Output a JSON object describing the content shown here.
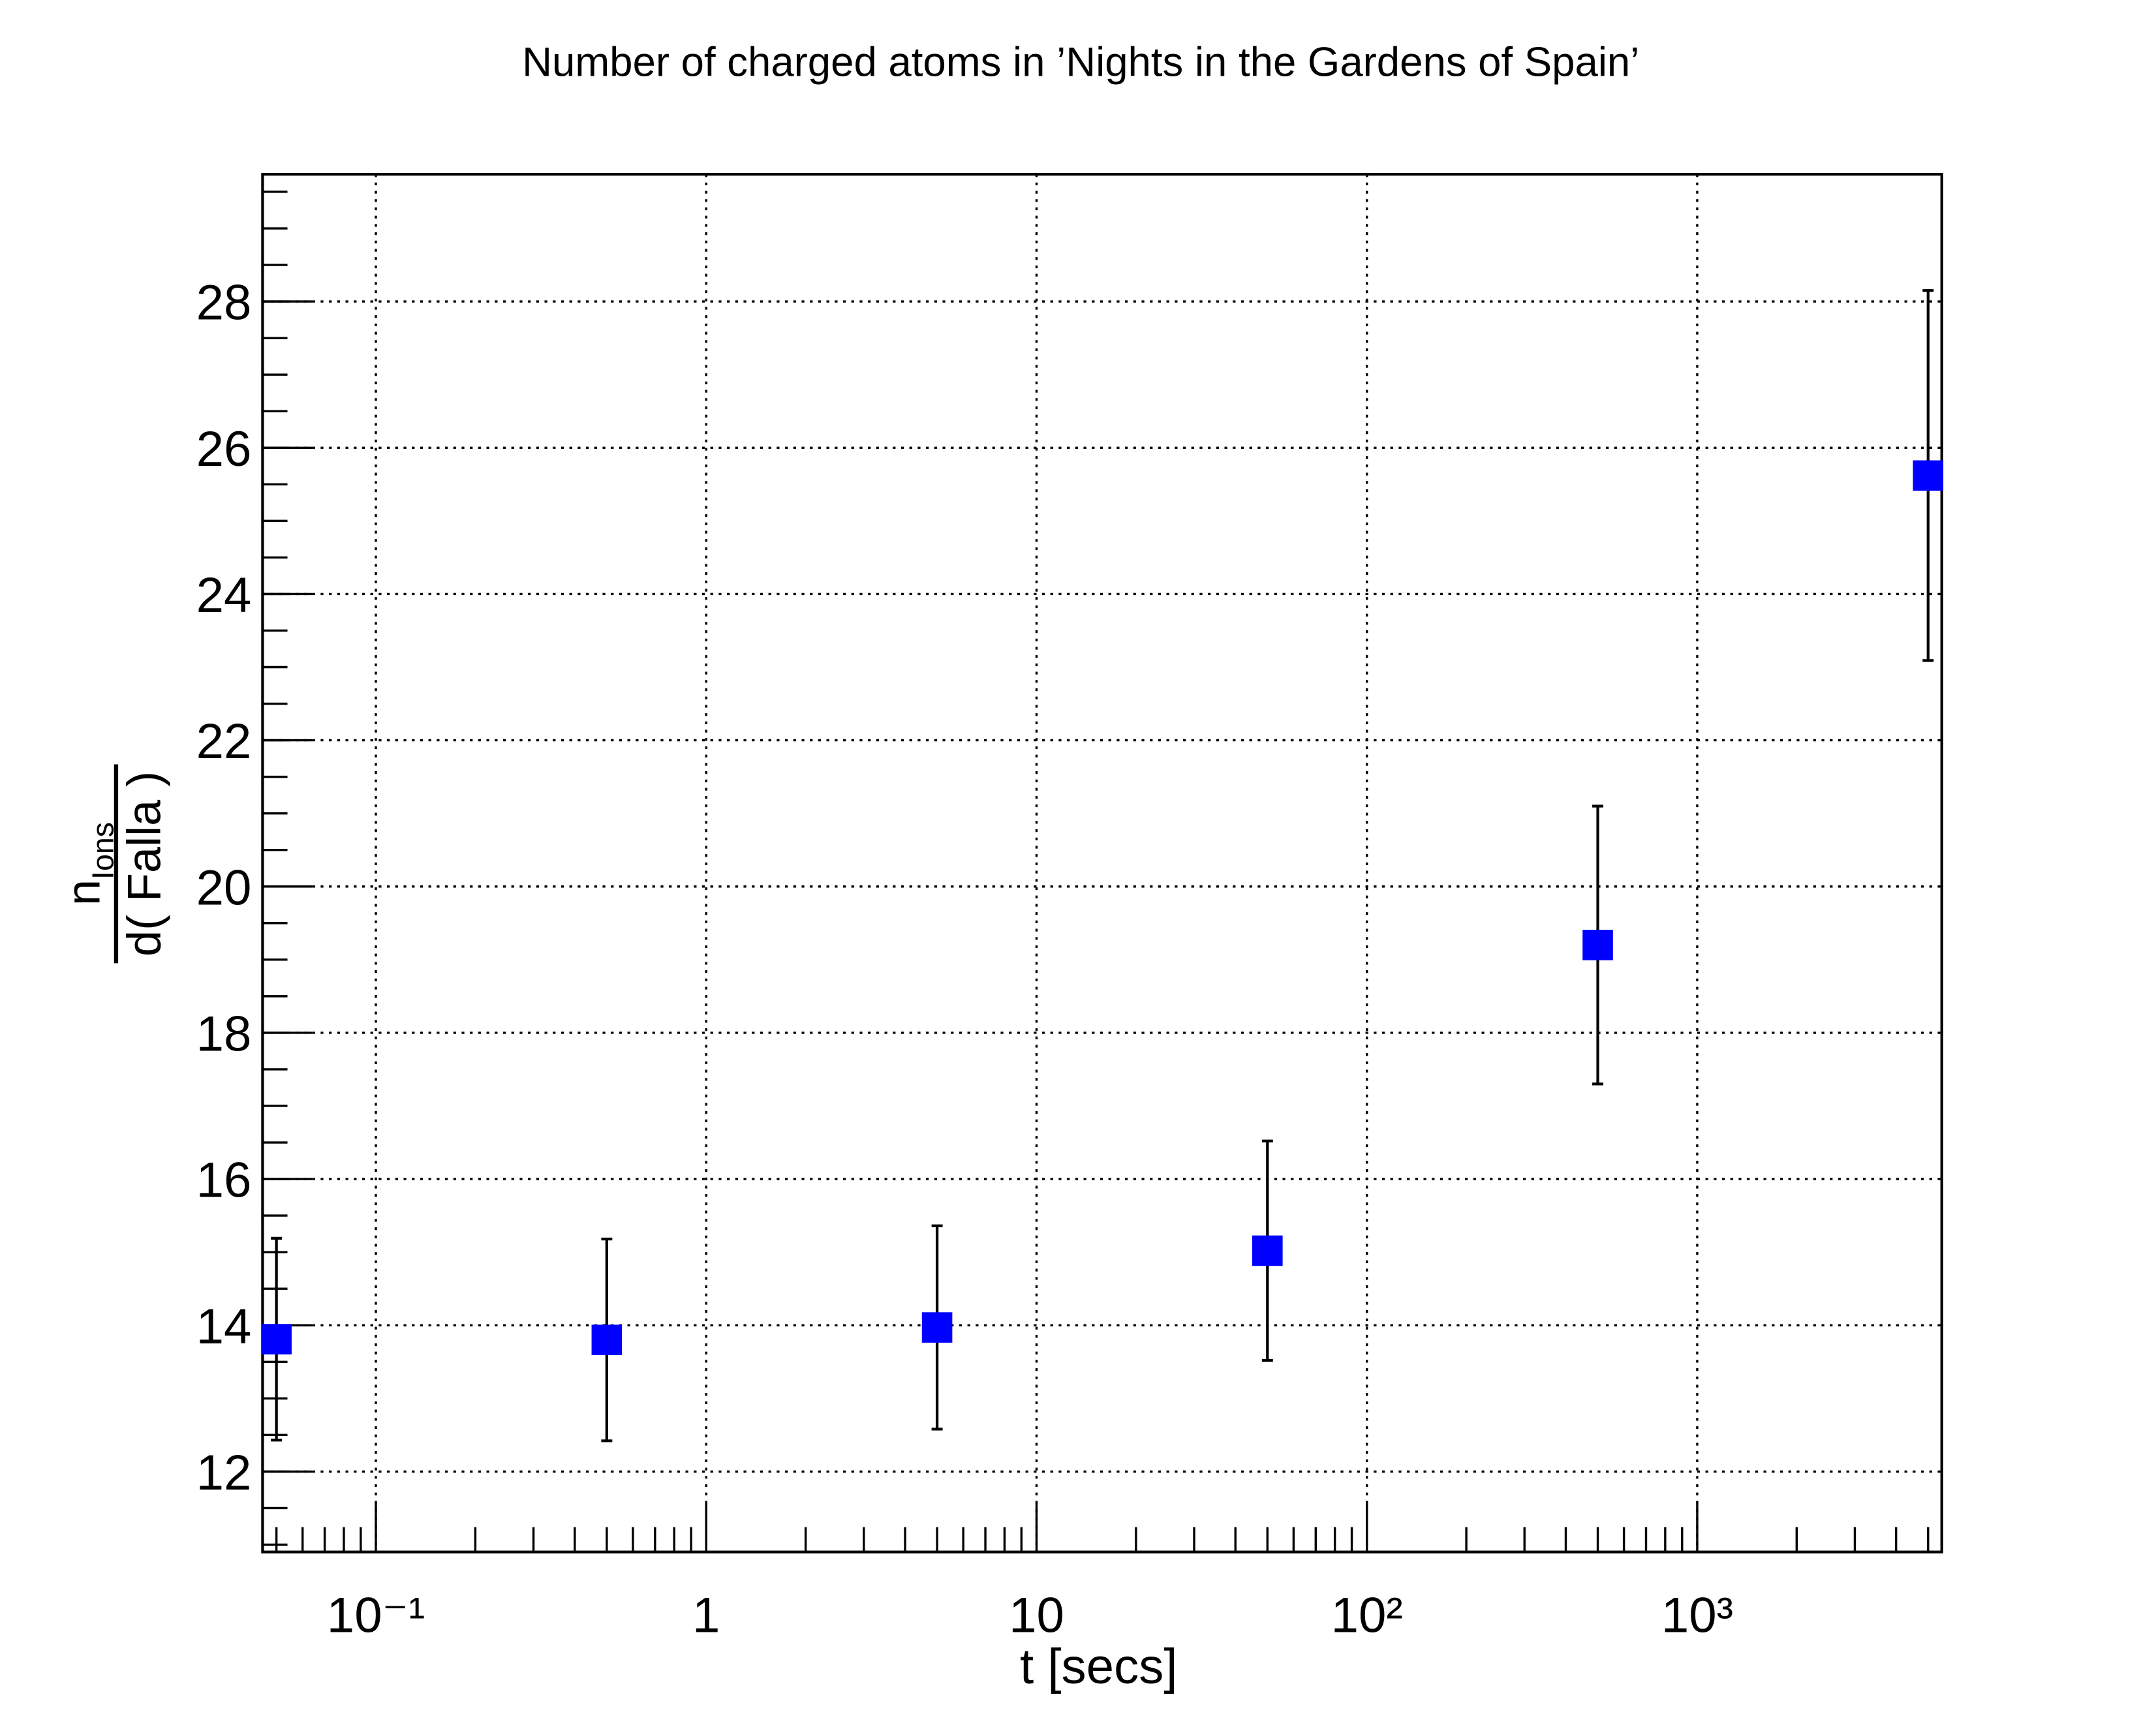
{
  "chart_data": {
    "type": "scatter",
    "title": "Number of charged atoms in ’Nights in the Gardens of Spain’",
    "x_label": "t [secs]",
    "y_label": {
      "numerator": "n",
      "numerator_sub": "Ions",
      "denominator": "d( Falla )"
    },
    "x_log": true,
    "grid": true,
    "series": [
      {
        "color": "#0000ff",
        "x": [
          0.05,
          0.5,
          5,
          50,
          500,
          5000
        ],
        "values": [
          13.81,
          13.8,
          13.97,
          15.02,
          19.2,
          25.62
        ],
        "errors": [
          1.38,
          1.38,
          1.39,
          1.5,
          1.9,
          2.53
        ]
      }
    ],
    "xlim": [
      0.0454,
      5500
    ],
    "xticks": [
      {
        "value": 0.1,
        "label": "10⁻¹"
      },
      1,
      10,
      {
        "value": 100,
        "label": "10²"
      },
      {
        "value": 1000,
        "label": "10³"
      }
    ],
    "ylim": [
      10.9,
      29.74
    ],
    "yticks": [
      12,
      14,
      16,
      18,
      20,
      22,
      24,
      26,
      28
    ]
  }
}
